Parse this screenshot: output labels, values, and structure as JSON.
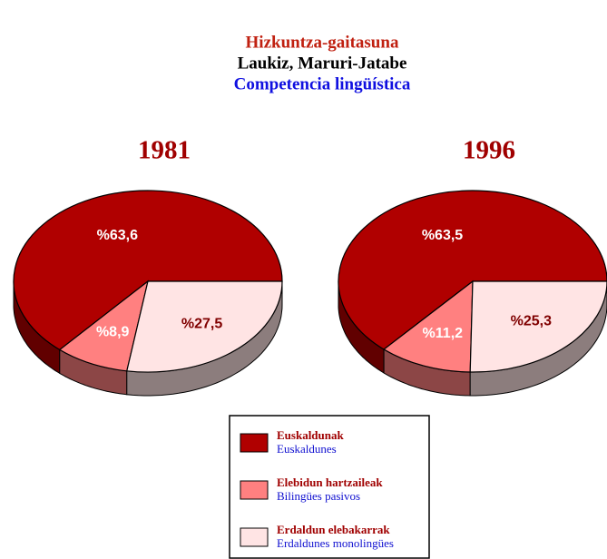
{
  "header": {
    "title": "Hizkuntza-gaitasuna",
    "subtitle": "Laukiz, Maruri-Jatabe",
    "title_es": "Competencia lingüística"
  },
  "legend": {
    "items": [
      {
        "name": "Euskaldunak",
        "name_es": "Euskaldunes",
        "color": "#b00000"
      },
      {
        "name": "Elebidun hartzaileak",
        "name_es": "Bilingües pasivos",
        "color": "#ff8080"
      },
      {
        "name": "Erdaldun elebakarrak",
        "name_es": "Erdaldunes monolingües",
        "color": "#ffe4e4"
      }
    ]
  },
  "chart_data": [
    {
      "type": "pie",
      "title": "1981",
      "values": [
        63.6,
        8.9,
        27.5
      ],
      "value_labels": [
        "%63,6",
        "%8,9",
        "%27,5"
      ],
      "colors": [
        "#b00000",
        "#ff8080",
        "#ffe4e4"
      ]
    },
    {
      "type": "pie",
      "title": "1996",
      "values": [
        63.5,
        11.2,
        25.3
      ],
      "value_labels": [
        "%63,5",
        "%11,2",
        "%25,3"
      ],
      "colors": [
        "#b00000",
        "#ff8080",
        "#ffe4e4"
      ]
    }
  ]
}
